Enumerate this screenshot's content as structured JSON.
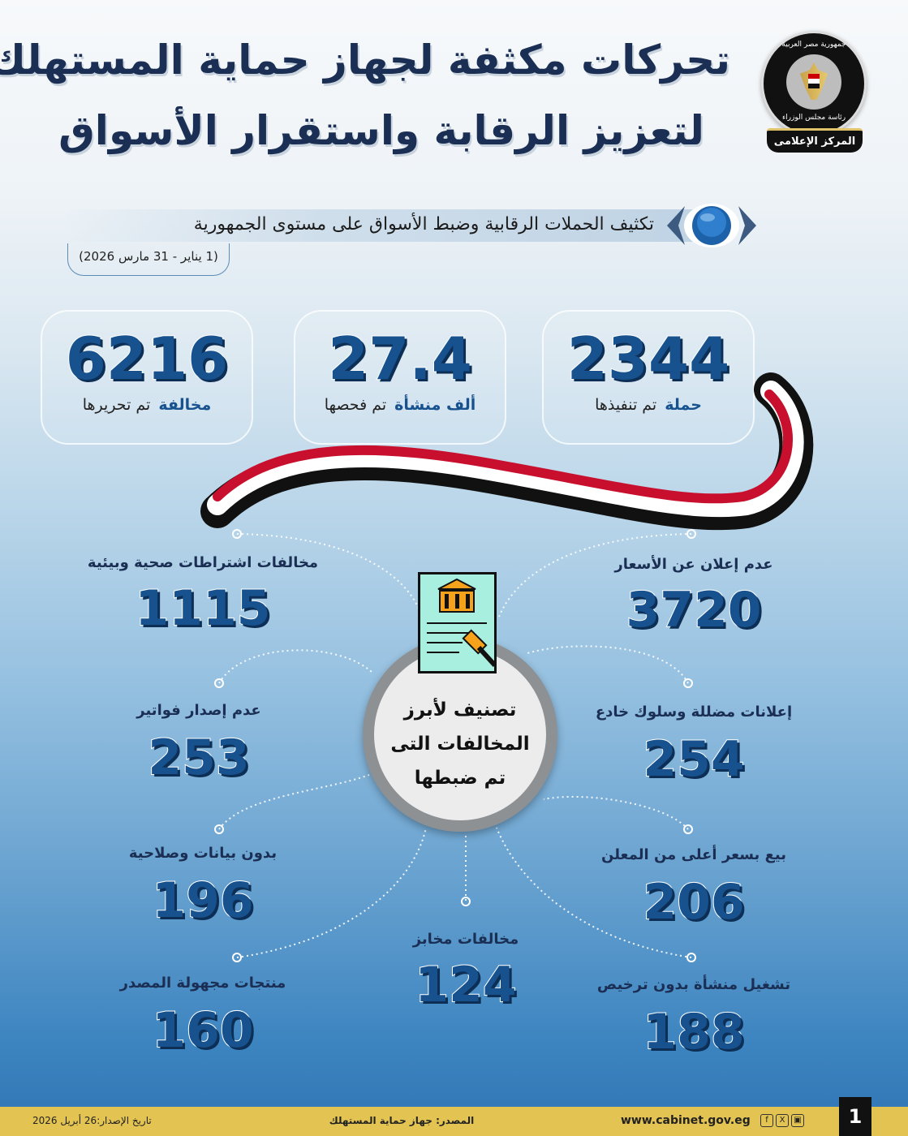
{
  "header": {
    "title_line1": "تحركات مكثفة لجهاز حماية المستهلك",
    "title_line2": "لتعزيز الرقابة واستقرار الأسواق"
  },
  "logo": {
    "top_text": "جمهورية مصر العربية",
    "mid_text": "رئاسة مجلس الوزراء",
    "band_text": "المركز الإعلامى"
  },
  "section": {
    "heading": "تكثيف الحملات الرقابية وضبط الأسواق على مستوى الجمهورية",
    "date_range": "(1 يناير - 31 مارس 2026)"
  },
  "stats": [
    {
      "value": "2344",
      "bold": "حملة",
      "text": "تم تنفيذها"
    },
    {
      "value": "27.4",
      "bold": "ألف منشأة",
      "text": "تم فحصها"
    },
    {
      "value": "6216",
      "bold": "مخالفة",
      "text": "تم تحريرها"
    }
  ],
  "center": {
    "line1": "تصنيف لأبرز",
    "line2": "المخالفات التى",
    "line3": "تم ضبطها"
  },
  "violations": [
    {
      "label": "عدم إعلان عن الأسعار",
      "value": "3720"
    },
    {
      "label": "مخالفات اشتراطات صحية وبيئية",
      "value": "1115"
    },
    {
      "label": "إعلانات مضللة وسلوك خادع",
      "value": "254"
    },
    {
      "label": "عدم إصدار فواتير",
      "value": "253"
    },
    {
      "label": "بيع بسعر أعلى من المعلن",
      "value": "206"
    },
    {
      "label": "بدون بيانات وصلاحية",
      "value": "196"
    },
    {
      "label": "مخالفات مخابز",
      "value": "124"
    },
    {
      "label": "تشغيل منشأة بدون ترخيص",
      "value": "188"
    },
    {
      "label": "منتجات مجهولة المصدر",
      "value": "160"
    }
  ],
  "footer": {
    "page_number": "1",
    "website": "www.cabinet.gov.eg",
    "source": "المصدر: جهاز حماية المستهلك",
    "issue_date": "تاريخ الإصدار:26 أبريل 2026",
    "social_icons": [
      "facebook-icon",
      "x-icon",
      "youtube-icon"
    ]
  },
  "colors": {
    "navy": "#1b2f54",
    "number_blue": "#17528f",
    "footer_yellow": "#e3c452",
    "flag_red": "#c8102e"
  }
}
